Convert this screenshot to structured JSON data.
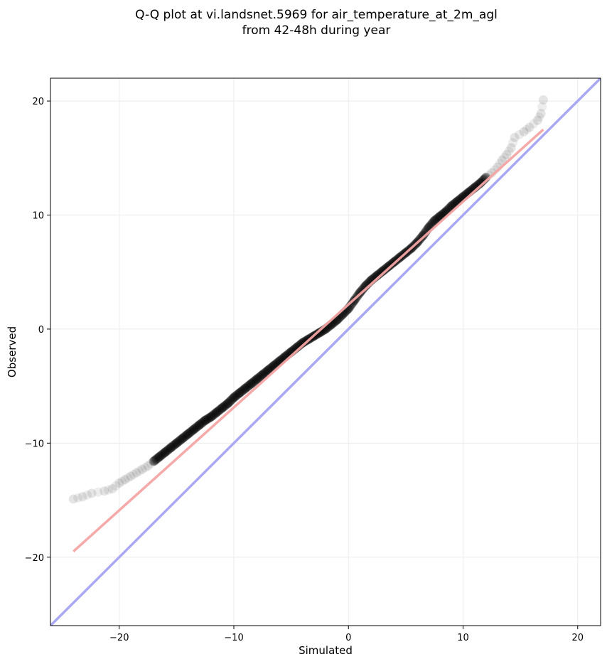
{
  "chart_data": {
    "type": "scatter",
    "title_line1": "Q-Q plot at vi.landsnet.5969 for air_temperature_at_2m_agl",
    "title_line2": "from 42-48h during year",
    "xlabel": "Simulated",
    "ylabel": "Observed",
    "xlim": [
      -26,
      22
    ],
    "ylim": [
      -26,
      22
    ],
    "xticks": [
      -20,
      -10,
      0,
      10,
      20
    ],
    "yticks": [
      -20,
      -10,
      0,
      10,
      20
    ],
    "xtick_labels": [
      "−20",
      "−10",
      "0",
      "10",
      "20"
    ],
    "ytick_labels": [
      "−20",
      "−10",
      "0",
      "10",
      "20"
    ],
    "grid": true,
    "quantile_points": {
      "color": "#000000",
      "x": [
        -24.0,
        -23.2,
        -22.4,
        -21.3,
        -20.6,
        -20.0,
        -19.5,
        -19.0,
        -18.5,
        -18.0,
        -17.5,
        -17.0,
        -16.5,
        -16.0,
        -15.5,
        -15.0,
        -14.5,
        -14.0,
        -13.5,
        -13.0,
        -12.5,
        -12.0,
        -11.5,
        -11.0,
        -10.5,
        -10.0,
        -9.5,
        -9.0,
        -8.5,
        -8.0,
        -7.5,
        -7.0,
        -6.5,
        -6.0,
        -5.5,
        -5.0,
        -4.5,
        -4.0,
        -3.5,
        -3.0,
        -2.5,
        -2.0,
        -1.5,
        -1.0,
        -0.5,
        0.0,
        0.5,
        1.0,
        1.5,
        2.0,
        2.5,
        3.0,
        3.5,
        4.0,
        4.5,
        5.0,
        5.5,
        6.0,
        6.5,
        7.0,
        7.5,
        8.0,
        8.5,
        9.0,
        9.5,
        10.0,
        10.5,
        11.0,
        11.5,
        12.0,
        12.5,
        13.0,
        13.4,
        13.8,
        14.2,
        14.5,
        15.3,
        15.8,
        16.5,
        16.8,
        17.0
      ],
      "y": [
        -14.9,
        -14.7,
        -14.4,
        -14.2,
        -14.0,
        -13.5,
        -13.2,
        -12.9,
        -12.6,
        -12.3,
        -12.0,
        -11.6,
        -11.2,
        -10.8,
        -10.4,
        -10.0,
        -9.6,
        -9.2,
        -8.8,
        -8.4,
        -8.0,
        -7.7,
        -7.3,
        -6.9,
        -6.5,
        -6.0,
        -5.6,
        -5.2,
        -4.8,
        -4.4,
        -4.0,
        -3.6,
        -3.2,
        -2.8,
        -2.4,
        -2.0,
        -1.6,
        -1.2,
        -0.9,
        -0.6,
        -0.3,
        0.0,
        0.4,
        0.8,
        1.3,
        1.8,
        2.5,
        3.2,
        3.8,
        4.3,
        4.7,
        5.1,
        5.5,
        5.9,
        6.3,
        6.7,
        7.1,
        7.6,
        8.2,
        8.9,
        9.5,
        9.9,
        10.3,
        10.8,
        11.2,
        11.6,
        12.0,
        12.4,
        12.8,
        13.3,
        13.7,
        14.2,
        14.8,
        15.3,
        15.9,
        16.8,
        17.3,
        17.7,
        18.3,
        18.9,
        20.1
      ]
    },
    "fit_line": {
      "color": "#f4a4a4",
      "x": [
        -24,
        17
      ],
      "y": [
        -19.5,
        17.5
      ]
    },
    "identity_line": {
      "color": "#a8a8f4",
      "x": [
        -26,
        22
      ],
      "y": [
        -26,
        22
      ]
    }
  }
}
